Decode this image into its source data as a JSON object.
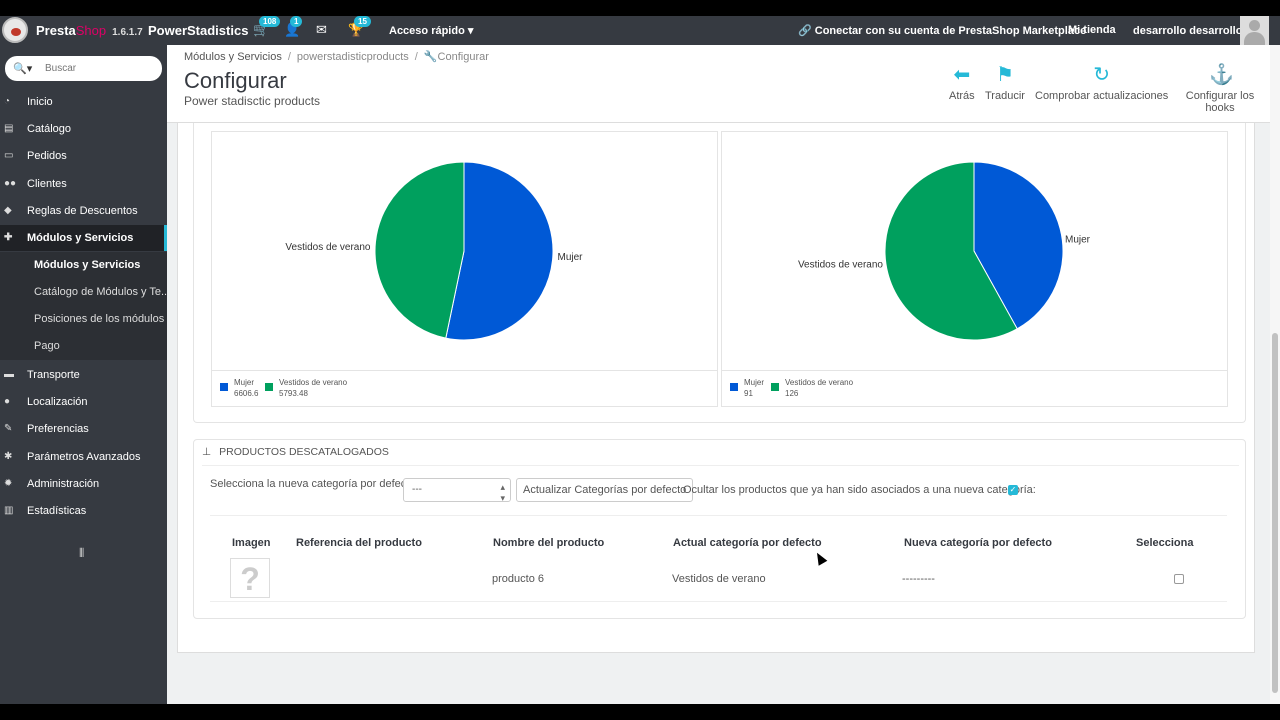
{
  "topbar": {
    "brand_main": "Presta",
    "brand_shop": "Shop",
    "version": "1.6.1.7",
    "app_name": "PowerStadistics",
    "cart_badge": "108",
    "users_badge": "1",
    "trophy_badge": "15",
    "quick_access": "Acceso rápido",
    "marketplace": "Conectar con su cuenta de PrestaShop Marketplace",
    "my_shop": "Mi tienda",
    "user_name": "desarrollo desarrollo"
  },
  "sidebar": {
    "search_placeholder": "Buscar",
    "items": [
      {
        "label": "Inicio",
        "icon": "tachometer-icon"
      },
      {
        "label": "Catálogo",
        "icon": "book-icon"
      },
      {
        "label": "Pedidos",
        "icon": "credit-card-icon"
      },
      {
        "label": "Clientes",
        "icon": "users-icon"
      },
      {
        "label": "Reglas de Descuentos",
        "icon": "tag-icon"
      },
      {
        "label": "Módulos y Servicios",
        "icon": "puzzle-icon"
      },
      {
        "label": "Transporte",
        "icon": "truck-icon"
      },
      {
        "label": "Localización",
        "icon": "globe-icon"
      },
      {
        "label": "Preferencias",
        "icon": "wrench-icon"
      },
      {
        "label": "Parámetros Avanzados",
        "icon": "cogs-icon"
      },
      {
        "label": "Administración",
        "icon": "cog-icon"
      },
      {
        "label": "Estadísticas",
        "icon": "bar-chart-icon"
      }
    ],
    "subitems": [
      {
        "label": "Módulos y Servicios"
      },
      {
        "label": "Catálogo de Módulos y Te..."
      },
      {
        "label": "Posiciones de los módulos"
      },
      {
        "label": "Pago"
      }
    ]
  },
  "header": {
    "breadcrumb": [
      "Módulos y Servicios",
      "powerstadisticproducts",
      "Configurar"
    ],
    "title": "Configurar",
    "subtitle": "Power stadisctic products",
    "toolbar": {
      "back": "Atrás",
      "translate": "Traducir",
      "check_updates": "Comprobar actualizaciones",
      "hooks": "Configurar los hooks"
    }
  },
  "colors": {
    "blue": "#0059d6",
    "green": "#00a05e",
    "accent": "#25b9d7"
  },
  "chart_data": [
    {
      "type": "pie",
      "categories": [
        "Mujer",
        "Vestidos de verano"
      ],
      "values": [
        6606.6,
        5793.48
      ],
      "legend_values": [
        "6606.6",
        "5793.48"
      ]
    },
    {
      "type": "pie",
      "categories": [
        "Mujer",
        "Vestidos de verano"
      ],
      "values": [
        91,
        126
      ],
      "legend_values": [
        "91",
        "126"
      ]
    }
  ],
  "discontinued": {
    "heading": "PRODUCTOS DESCATALOGADOS",
    "select_label": "Selecciona la nueva categoría por defecto:",
    "select_value": "---",
    "update_button": "Actualizar Categorías por defecto",
    "hide_label": "Ocultar los productos que ya han sido asociados a una nueva categoría:",
    "hide_checked": true,
    "columns": [
      "Imagen",
      "Referencia del producto",
      "Nombre del producto",
      "Actual categoría por defecto",
      "Nueva categoría por defecto",
      "Selecciona"
    ],
    "rows": [
      {
        "reference": "",
        "name": "producto 6",
        "current_category": "Vestidos de verano",
        "new_category": "---------",
        "selected": false
      }
    ]
  }
}
